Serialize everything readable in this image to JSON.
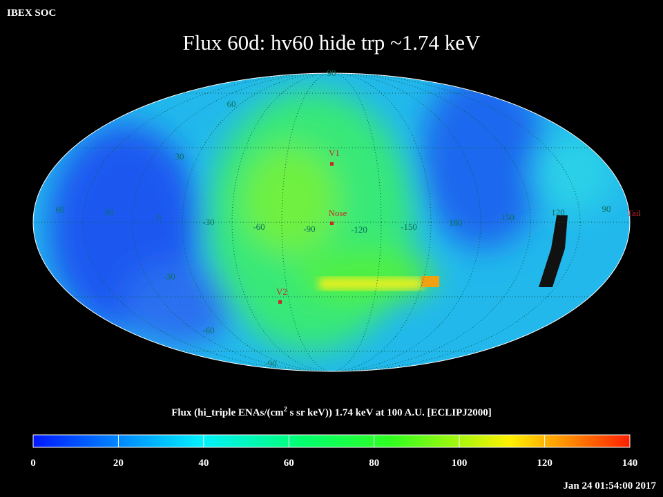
{
  "header": {
    "label": "IBEX SOC"
  },
  "title": "Flux   60d: hv60 hide trp ~1.74 keV",
  "map": {
    "grid_labels": [
      "90",
      "60",
      "30",
      "60",
      "30",
      "0",
      "-30",
      "-60",
      "-90",
      "-120",
      "-150",
      "180",
      "150",
      "120",
      "90",
      "-30",
      "-60",
      "-90"
    ],
    "markers": [
      "V1",
      "Nose",
      "V2",
      "Tail"
    ]
  },
  "caption": {
    "parts": [
      "Flux (hi_triple ENAs/(cm",
      "2",
      " s sr keV))  1.74 keV at 100 A.U. [ECLIPJ2000]"
    ]
  },
  "colorbar": {
    "ticks": [
      "0",
      "20",
      "40",
      "60",
      "80",
      "100",
      "120",
      "140"
    ]
  },
  "timestamp": "Jan 24 01:54:00 2017"
}
